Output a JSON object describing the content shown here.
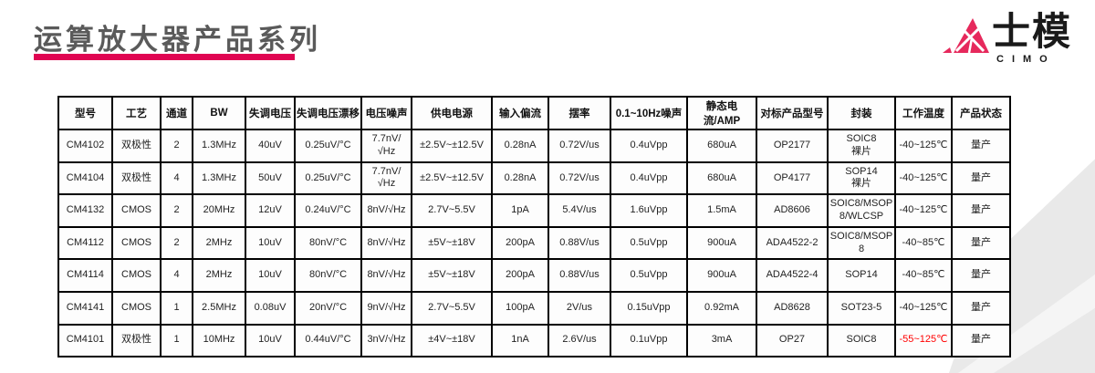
{
  "slide": {
    "title": "运算放大器产品系列",
    "accent_color": "#e00552",
    "logo": {
      "zh": "士模",
      "en": "CIMO",
      "mark_color": "#e6295c"
    }
  },
  "table": {
    "headers": [
      "型号",
      "工艺",
      "通道",
      "BW",
      "失调电压",
      "失调电压漂移",
      "电压噪声",
      "供电电源",
      "输入偏流",
      "摆率",
      "0.1~10Hz噪声",
      "静态电流/AMP",
      "对标产品型号",
      "封装",
      "工作温度",
      "产品状态"
    ],
    "rows": [
      {
        "cells": [
          "CM4102",
          "双极性",
          "2",
          "1.3MHz",
          "40uV",
          "0.25uV/°C",
          "7.7nV/√Hz",
          "±2.5V~±12.5V",
          "0.28nA",
          "0.72V/us",
          "0.4uVpp",
          "680uA",
          "OP2177",
          "SOIC8\n裸片",
          "-40~125℃",
          "量产"
        ]
      },
      {
        "cells": [
          "CM4104",
          "双极性",
          "4",
          "1.3MHz",
          "50uV",
          "0.25uV/°C",
          "7.7nV/√Hz",
          "±2.5V~±12.5V",
          "0.28nA",
          "0.72V/us",
          "0.4uVpp",
          "680uA",
          "OP4177",
          "SOP14\n裸片",
          "-40~125℃",
          "量产"
        ]
      },
      {
        "cells": [
          "CM4132",
          "CMOS",
          "2",
          "20MHz",
          "12uV",
          "0.24uV/°C",
          "8nV/√Hz",
          "2.7V~5.5V",
          "1pA",
          "5.4V/us",
          "1.6uVpp",
          "1.5mA",
          "AD8606",
          "SOIC8/MSOP8/WLCSP",
          "-40~125℃",
          "量产"
        ]
      },
      {
        "cells": [
          "CM4112",
          "CMOS",
          "2",
          "2MHz",
          "10uV",
          "80nV/°C",
          "8nV/√Hz",
          "±5V~±18V",
          "200pA",
          "0.88V/us",
          "0.5uVpp",
          "900uA",
          "ADA4522-2",
          "SOIC8/MSOP8",
          "-40~85℃",
          "量产"
        ]
      },
      {
        "cells": [
          "CM4114",
          "CMOS",
          "4",
          "2MHz",
          "10uV",
          "80nV/°C",
          "8nV/√Hz",
          "±5V~±18V",
          "200pA",
          "0.88V/us",
          "0.5uVpp",
          "900uA",
          "ADA4522-4",
          "SOP14",
          "-40~85℃",
          "量产"
        ]
      },
      {
        "cells": [
          "CM4141",
          "CMOS",
          "1",
          "2.5MHz",
          "0.08uV",
          "20nV/°C",
          "9nV/√Hz",
          "2.7V~5.5V",
          "100pA",
          "2V/us",
          "0.15uVpp",
          "0.92mA",
          "AD8628",
          "SOT23-5",
          "-40~125℃",
          "量产"
        ]
      },
      {
        "cells": [
          "CM4101",
          "双极性",
          "1",
          "10MHz",
          "10uV",
          "0.44uV/°C",
          "3nV/√Hz",
          "±4V~±18V",
          "1nA",
          "2.6V/us",
          "0.1uVpp",
          "3mA",
          "OP27",
          "SOIC8",
          "-55~125℃",
          "量产"
        ]
      }
    ],
    "highlight": {
      "row": 6,
      "col": 14,
      "color": "#ff0000"
    }
  }
}
